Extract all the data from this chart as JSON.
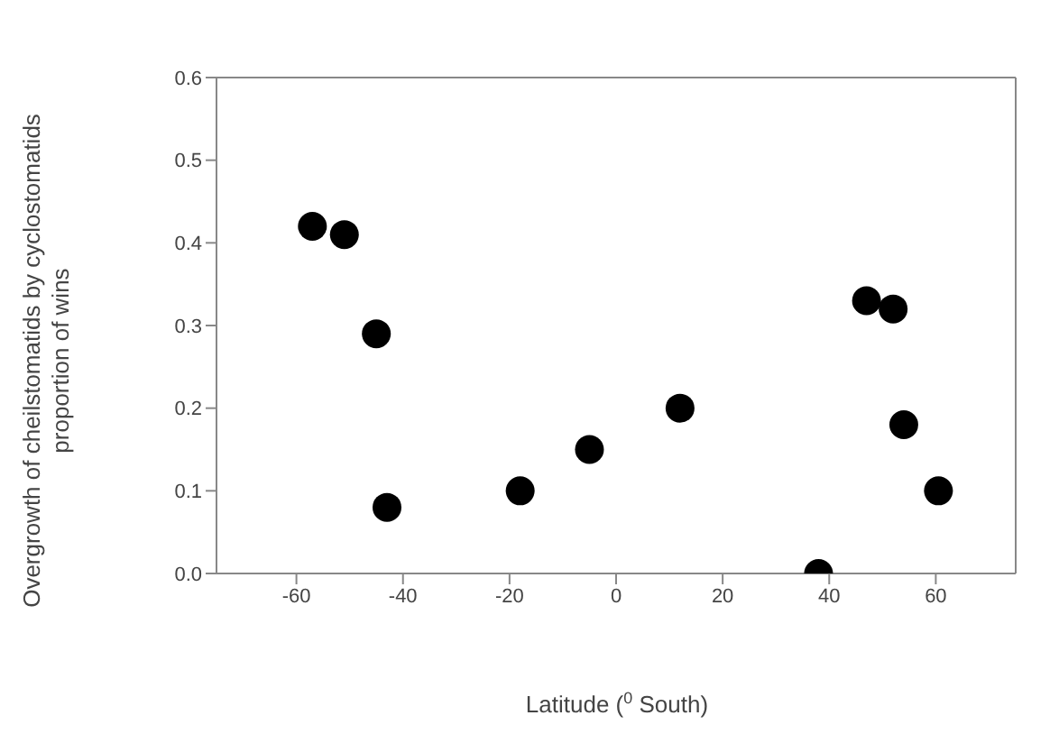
{
  "chart_data": {
    "type": "scatter",
    "xlabel": "Latitude ($^{0}$ South)",
    "ylabel": "Overgrowth of cheilstomatids by cyclostomatids proportion of wins",
    "x": [
      -57,
      -51,
      -45,
      -43,
      -18,
      -5,
      12,
      38,
      47,
      52,
      54,
      60.5
    ],
    "values": [
      0.42,
      0.41,
      0.29,
      0.08,
      0.1,
      0.15,
      0.2,
      0.0,
      0.33,
      0.32,
      0.18,
      0.1
    ],
    "color": "#000000",
    "marker": "circle",
    "xlim": [
      -75,
      75
    ],
    "xticks": [
      -60,
      -40,
      -20,
      0,
      20,
      40,
      60
    ],
    "ylim": [
      0,
      0.6
    ],
    "yticks": [
      {
        "value": 0,
        "label": "0.0"
      },
      {
        "value": 0.1,
        "label": "0.1"
      },
      {
        "value": 0.2,
        "label": "0.2"
      },
      {
        "value": 0.3,
        "label": "0.3"
      },
      {
        "value": 0.4,
        "label": "0.4"
      },
      {
        "value": 0.5,
        "label": "0.5"
      },
      {
        "value": 0.6,
        "label": "0.6"
      }
    ],
    "grid": false,
    "legend": false
  }
}
